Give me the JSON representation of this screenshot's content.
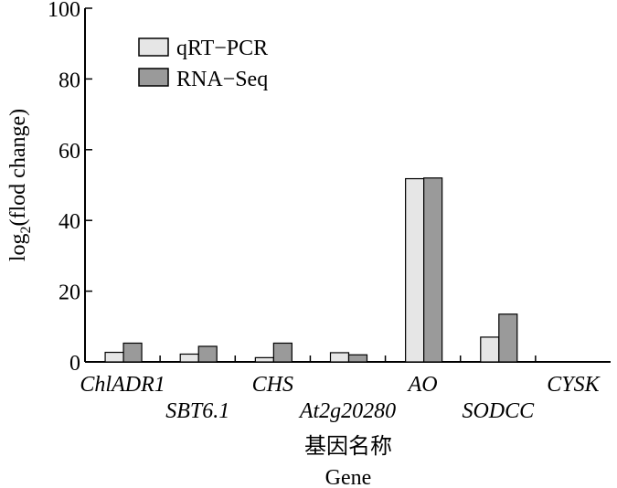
{
  "chart_data": {
    "type": "bar",
    "categories": [
      "ChlADR1",
      "SBT6.1",
      "CHS",
      "At2g20280",
      "AO",
      "SODCC",
      "CYSK"
    ],
    "series": [
      {
        "name": "qRT−PCR",
        "color": "#e6e6e6",
        "values": [
          2.7,
          2.2,
          1.2,
          2.6,
          51.8,
          7.0,
          0
        ]
      },
      {
        "name": "RNA−Seq",
        "color": "#9a9a9a",
        "values": [
          5.3,
          4.4,
          5.3,
          2.0,
          52.0,
          13.5,
          0
        ]
      }
    ],
    "ylabel_main": "log",
    "ylabel_sub": "2",
    "ylabel_rest": "(flod change)",
    "xlabel_cn": "基因名称",
    "xlabel_en": "Gene",
    "ylim": [
      0,
      100
    ],
    "yticks": [
      0,
      20,
      40,
      60,
      80,
      100
    ],
    "grid": false,
    "legend_position": "top-left"
  }
}
